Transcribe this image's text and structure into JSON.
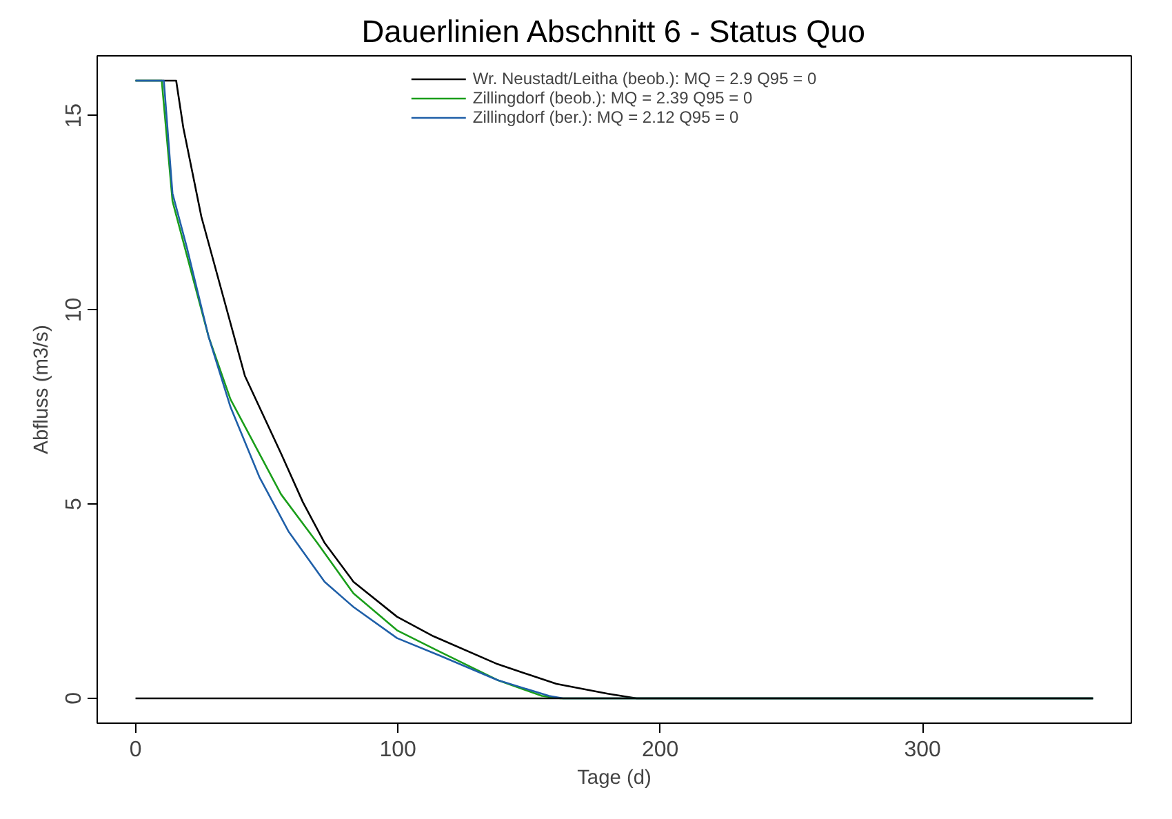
{
  "chart_data": {
    "type": "line",
    "title": "Dauerlinien Abschnitt 6 - Status Quo",
    "xlabel": "Tage (d)",
    "ylabel": "Abfluss (m3/s)",
    "xlim": [
      -14.6,
      379.6
    ],
    "ylim": [
      -0.64,
      16.54
    ],
    "xticks": [
      0,
      100,
      200,
      300
    ],
    "yticks": [
      0,
      5,
      10,
      15
    ],
    "grid": false,
    "legend": "top",
    "marker": "none",
    "line_style": "solid",
    "series": [
      {
        "name": "Wr. Neustadt/Leitha (beob.): MQ = 2.9 Q95 = 0",
        "color": "#000000",
        "x": [
          0,
          15.5,
          18.2,
          25.1,
          33.4,
          41.7,
          55.5,
          63.8,
          72.1,
          83.1,
          99.7,
          113.5,
          138,
          160.5,
          180,
          191,
          365
        ],
        "values": [
          15.9,
          15.9,
          14.7,
          12.4,
          10.35,
          8.3,
          6.3,
          5.05,
          4.0,
          3.0,
          2.1,
          1.6,
          0.88,
          0.37,
          0.12,
          0,
          0
        ]
      },
      {
        "name": "Zillingdorf (beob.): MQ = 2.39 Q95 = 0",
        "color": "#1a9e1a",
        "x": [
          0,
          10,
          14.1,
          19.6,
          27.9,
          36.2,
          47.2,
          55.5,
          69.3,
          83.1,
          99.7,
          116,
          138,
          155,
          162,
          365
        ],
        "values": [
          15.9,
          15.9,
          12.8,
          11.4,
          9.3,
          7.7,
          6.3,
          5.25,
          4.0,
          2.7,
          1.75,
          1.2,
          0.47,
          0.06,
          0,
          0
        ]
      },
      {
        "name": "Zillingdorf (ber.): MQ = 2.12 Q95 = 0",
        "color": "#1f5fa8",
        "x": [
          0,
          10.8,
          14.1,
          19.6,
          27.9,
          36.2,
          47.2,
          58.3,
          72.1,
          83.1,
          99.7,
          116,
          138,
          157.7,
          163,
          365
        ],
        "values": [
          15.9,
          15.9,
          13.0,
          11.6,
          9.3,
          7.5,
          5.7,
          4.3,
          3.0,
          2.35,
          1.55,
          1.1,
          0.47,
          0.06,
          0,
          0
        ]
      },
      {
        "color": "#000000",
        "x": [
          0,
          365
        ],
        "values": [
          0,
          0
        ]
      }
    ]
  }
}
